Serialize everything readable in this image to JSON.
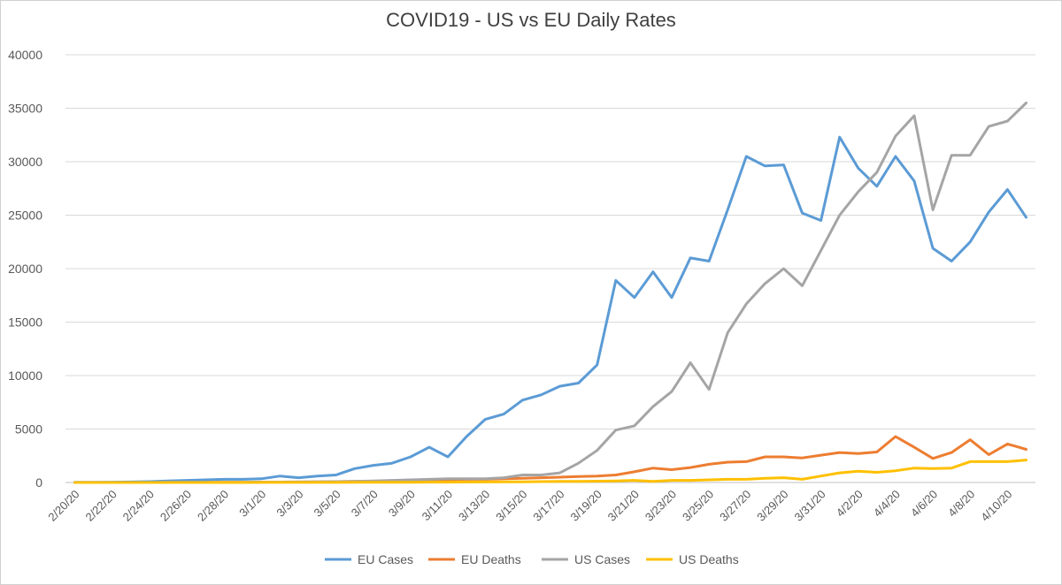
{
  "chart_data": {
    "type": "line",
    "title": "COVID19 - US vs EU Daily Rates",
    "xlabel": "",
    "ylabel": "",
    "ylim": [
      0,
      40000
    ],
    "yticks": [
      "0",
      "5000",
      "10000",
      "15000",
      "20000",
      "25000",
      "30000",
      "35000",
      "40000"
    ],
    "grid": true,
    "legend_position": "bottom",
    "tick_label_dates": [
      "2/20/20",
      "2/22/20",
      "2/24/20",
      "2/26/20",
      "2/28/20",
      "3/1/20",
      "3/3/20",
      "3/5/20",
      "3/7/20",
      "3/9/20",
      "3/11/20",
      "3/13/20",
      "3/15/20",
      "3/17/20",
      "3/19/20",
      "3/21/20",
      "3/23/20",
      "3/25/20",
      "3/27/20",
      "3/29/20",
      "3/31/20",
      "4/2/20",
      "4/4/20",
      "4/6/20",
      "4/8/20",
      "4/10/20"
    ],
    "x": [
      "2/20/20",
      "2/21/20",
      "2/22/20",
      "2/23/20",
      "2/24/20",
      "2/25/20",
      "2/26/20",
      "2/27/20",
      "2/28/20",
      "2/29/20",
      "3/1/20",
      "3/2/20",
      "3/3/20",
      "3/4/20",
      "3/5/20",
      "3/6/20",
      "3/7/20",
      "3/8/20",
      "3/9/20",
      "3/10/20",
      "3/11/20",
      "3/12/20",
      "3/13/20",
      "3/14/20",
      "3/15/20",
      "3/16/20",
      "3/17/20",
      "3/18/20",
      "3/19/20",
      "3/20/20",
      "3/21/20",
      "3/22/20",
      "3/23/20",
      "3/24/20",
      "3/25/20",
      "3/26/20",
      "3/27/20",
      "3/28/20",
      "3/29/20",
      "3/30/20",
      "3/31/20",
      "4/1/20",
      "4/2/20",
      "4/3/20",
      "4/4/20",
      "4/5/20",
      "4/6/20",
      "4/7/20",
      "4/8/20",
      "4/9/20",
      "4/10/20",
      "4/11/20"
    ],
    "series": [
      {
        "name": "EU Cases",
        "color": "#5b9bd5",
        "values": [
          20,
          20,
          30,
          50,
          80,
          150,
          200,
          250,
          300,
          300,
          350,
          600,
          450,
          600,
          700,
          1300,
          1600,
          1800,
          2400,
          3300,
          2400,
          4300,
          5900,
          6400,
          7700,
          8200,
          9000,
          9300,
          11000,
          18900,
          17300,
          19700,
          17300,
          21000,
          20700,
          25500,
          30500,
          29600,
          29700,
          25200,
          24500,
          32300,
          29400,
          27700,
          30500,
          28200,
          21900,
          20700,
          22500,
          25300,
          27400,
          24800
        ]
      },
      {
        "name": "EU Deaths",
        "color": "#ed7d31",
        "values": [
          0,
          0,
          0,
          0,
          0,
          5,
          10,
          10,
          15,
          20,
          30,
          40,
          50,
          60,
          80,
          100,
          120,
          140,
          160,
          200,
          250,
          300,
          300,
          350,
          400,
          450,
          500,
          550,
          600,
          700,
          1000,
          1350,
          1200,
          1400,
          1700,
          1900,
          1950,
          2400,
          2400,
          2300,
          2550,
          2800,
          2700,
          2850,
          4300,
          3300,
          2250,
          2800,
          4000,
          2600,
          3600,
          3100
        ]
      },
      {
        "name": "US Cases",
        "color": "#a5a5a5",
        "values": [
          0,
          0,
          0,
          0,
          0,
          5,
          10,
          10,
          15,
          20,
          30,
          40,
          50,
          60,
          80,
          100,
          150,
          200,
          250,
          300,
          350,
          350,
          350,
          450,
          700,
          700,
          900,
          1800,
          3000,
          4900,
          5300,
          7100,
          8500,
          11200,
          8700,
          14000,
          16700,
          18600,
          20000,
          18400,
          21700,
          25000,
          27200,
          29000,
          32400,
          34300,
          25500,
          30600,
          30600,
          33300,
          33800,
          35500
        ]
      },
      {
        "name": "US Deaths",
        "color": "#ffc000",
        "values": [
          0,
          0,
          0,
          0,
          0,
          0,
          0,
          0,
          0,
          0,
          5,
          5,
          10,
          10,
          10,
          15,
          20,
          20,
          25,
          30,
          30,
          40,
          50,
          60,
          70,
          80,
          100,
          110,
          120,
          150,
          200,
          100,
          200,
          200,
          250,
          300,
          300,
          400,
          450,
          300,
          600,
          900,
          1050,
          950,
          1100,
          1350,
          1300,
          1350,
          1950,
          1950,
          1950,
          2100
        ]
      }
    ]
  }
}
